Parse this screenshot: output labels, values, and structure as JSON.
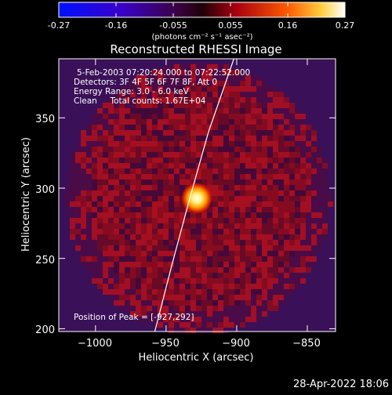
{
  "colorbar": {
    "ticks": [
      "-0.27",
      "-0.16",
      "-0.055",
      "0.055",
      "0.16",
      "0.27"
    ],
    "unit_label": "(photons cm⁻² s⁻¹ asec⁻²)"
  },
  "chart_data": {
    "type": "heatmap",
    "title": "Reconstructed RHESSI Image",
    "xlabel": "Heliocentric X (arcsec)",
    "ylabel": "Heliocentric Y (arcsec)",
    "xlim": [
      -1026,
      -830
    ],
    "ylim": [
      198,
      392
    ],
    "xticks": [
      -1000,
      -950,
      -900,
      -850
    ],
    "xtick_labels": [
      "−1000",
      "−950",
      "−900",
      "−850"
    ],
    "yticks": [
      200,
      250,
      300,
      350
    ],
    "ytick_labels": [
      "200",
      "250",
      "300",
      "350"
    ],
    "colorbar_range": [
      -0.27,
      0.27
    ],
    "peak": {
      "x": -927,
      "y": 292
    },
    "annotations": [
      "5-Feb-2003 07:20:24.000 to 07:22:52.000",
      "Detectors: 3F 4F 5F 6F 7F 8F, Att 0",
      "Energy Range: 3.0 - 6.0 keV",
      "Clean     Total counts: 1.67E+04"
    ],
    "peak_label": "Position of Peak = [-927,292]",
    "limb_curve": [
      [
        -958,
        198
      ],
      [
        -946,
        245
      ],
      [
        -934,
        290
      ],
      [
        -920,
        340
      ],
      [
        -902,
        392
      ]
    ]
  },
  "footer_timestamp": "28-Apr-2022 18:06"
}
